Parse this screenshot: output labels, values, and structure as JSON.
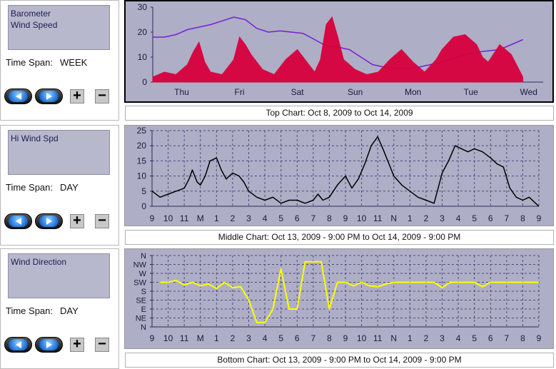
{
  "panels": [
    {
      "series": [
        "Barometer",
        "Wind Speed"
      ],
      "time_span_label": "Time Span:",
      "time_span_value": "WEEK"
    },
    {
      "series": [
        "Hi Wind Spd"
      ],
      "time_span_label": "Time Span:",
      "time_span_value": "DAY"
    },
    {
      "series": [
        "Wind Direction"
      ],
      "time_span_label": "Time Span:",
      "time_span_value": "DAY"
    }
  ],
  "controls": {
    "back": "back",
    "forward": "forward",
    "plus": "+",
    "minus": "−",
    "icons": {
      "back": "left-arrow-icon",
      "forward": "right-arrow-icon",
      "plus": "plus-icon",
      "minus": "minus-icon"
    }
  },
  "captions": {
    "top": "Top Chart:  Oct 8, 2009  to  Oct 14, 2009",
    "middle": "Middle Chart:  Oct 13, 2009 - 9:00 PM  to  Oct 14, 2009 - 9:00 PM",
    "bottom": "Bottom Chart:  Oct 13, 2009 - 9:00 PM  to  Oct 14, 2009 - 9:00 PM"
  },
  "colors": {
    "plot_bg": "#aeaec6",
    "wind_speed": "#d8003c",
    "barometer": "#7a1fd0",
    "hi_wind": "#000000",
    "direction": "#ffff00",
    "grid": "#4b4b80"
  },
  "chart_data": [
    {
      "type": "line",
      "x_ticks": [
        "Thu",
        "Fri",
        "Sat",
        "Sun",
        "Mon",
        "Tue",
        "Wed"
      ],
      "ylim": [
        0,
        30
      ],
      "y_ticks": [
        "0",
        "10",
        "20",
        "30"
      ],
      "grid": false,
      "series": [
        {
          "name": "Barometer",
          "color": "#7a1fd0",
          "x": [
            0,
            0.2,
            0.4,
            0.6,
            0.8,
            1.0,
            1.2,
            1.4,
            1.6,
            1.8,
            2.0,
            2.2,
            2.4,
            2.6,
            2.8,
            3.0,
            3.2,
            3.4,
            3.6,
            3.8,
            4.0,
            4.2,
            4.4,
            4.6,
            4.8,
            5.0,
            5.2,
            5.4,
            5.6,
            5.8,
            6.0,
            6.2,
            6.4
          ],
          "values": [
            18,
            18,
            19,
            21,
            22,
            23,
            24.5,
            26,
            25,
            21.5,
            20,
            20.5,
            20,
            19.5,
            17,
            14.5,
            14,
            13,
            10,
            7,
            6,
            5.5,
            5.5,
            6,
            7,
            8,
            9.5,
            11,
            12,
            12.5,
            13,
            15,
            17
          ]
        },
        {
          "name": "Wind Speed",
          "color": "#d8003c",
          "x": [
            0,
            0.2,
            0.4,
            0.6,
            0.7,
            0.8,
            0.9,
            1.0,
            1.2,
            1.4,
            1.5,
            1.6,
            1.7,
            1.9,
            2.1,
            2.3,
            2.5,
            2.7,
            2.8,
            2.9,
            3.0,
            3.1,
            3.2,
            3.3,
            3.5,
            3.7,
            3.9,
            4.1,
            4.3,
            4.5,
            4.7,
            4.9,
            5.0,
            5.2,
            5.4,
            5.6,
            5.7,
            5.8,
            6.0,
            6.2,
            6.4
          ],
          "values": [
            2,
            4,
            3,
            7,
            12,
            16,
            8,
            4,
            3,
            9,
            18,
            15,
            11,
            5,
            3,
            9,
            13,
            7,
            4,
            9,
            23,
            26,
            18,
            9,
            5,
            3,
            4,
            9,
            13,
            8,
            4,
            9,
            13,
            18,
            19,
            15,
            10,
            8,
            15,
            11,
            2
          ]
        }
      ]
    },
    {
      "type": "line",
      "x_ticks": [
        "9",
        "10",
        "11",
        "M",
        "1",
        "2",
        "3",
        "4",
        "5",
        "6",
        "7",
        "8",
        "9",
        "10",
        "11",
        "N",
        "1",
        "2",
        "3",
        "4",
        "5",
        "6",
        "7",
        "8",
        "9"
      ],
      "ylim": [
        0,
        25
      ],
      "y_ticks": [
        "0",
        "5",
        "10",
        "15",
        "20",
        "25"
      ],
      "grid": true,
      "series": [
        {
          "name": "Hi Wind Spd",
          "color": "#000000",
          "x": [
            0,
            0.5,
            1,
            1.5,
            2,
            2.3,
            2.5,
            2.8,
            3,
            3.3,
            3.6,
            4,
            4.3,
            4.6,
            5,
            5.4,
            5.7,
            6,
            6.5,
            7,
            7.5,
            8,
            8.5,
            9,
            9.5,
            10,
            10.3,
            10.6,
            11,
            11.5,
            12,
            12.4,
            12.8,
            13.2,
            13.6,
            14,
            14.4,
            15,
            15.5,
            16,
            16.5,
            17,
            17.5,
            18,
            18.4,
            18.8,
            19.2,
            19.6,
            20,
            20.5,
            21,
            21.4,
            21.8,
            22.2,
            22.6,
            23,
            23.4,
            23.8,
            24
          ],
          "values": [
            5,
            3,
            4,
            5,
            6,
            9,
            12,
            8,
            7,
            10,
            15,
            16,
            12,
            9,
            11,
            10,
            8,
            5,
            3,
            2,
            3,
            1,
            2,
            2,
            1,
            2,
            4,
            2,
            3,
            7,
            10,
            6,
            9,
            14,
            20,
            23,
            18,
            10,
            7,
            5,
            3,
            2,
            1,
            11,
            15,
            20,
            19,
            18,
            19,
            18,
            16,
            14,
            13,
            6,
            3,
            2,
            3,
            1,
            0
          ]
        }
      ]
    },
    {
      "type": "line",
      "x_ticks": [
        "9",
        "10",
        "11",
        "M",
        "1",
        "2",
        "3",
        "4",
        "5",
        "6",
        "7",
        "8",
        "9",
        "10",
        "11",
        "N",
        "1",
        "2",
        "3",
        "4",
        "5",
        "6",
        "7",
        "8",
        "9"
      ],
      "ylim": [
        0,
        8
      ],
      "y_ticks": [
        "N",
        "NE",
        "E",
        "SE",
        "S",
        "SW",
        "W",
        "NW",
        "N"
      ],
      "grid": true,
      "series": [
        {
          "name": "Wind Direction",
          "color": "#ffff00",
          "x": [
            0.5,
            1,
            1.5,
            2,
            2.5,
            3,
            3.5,
            4,
            4.5,
            5,
            5.5,
            6,
            6.5,
            7,
            7.5,
            8,
            8.5,
            9,
            9.5,
            10,
            10.5,
            11,
            11.5,
            12,
            12.5,
            13,
            13.5,
            14,
            14.5,
            15,
            15.5,
            16,
            16.5,
            17,
            17.5,
            18,
            18.5,
            19,
            19.5,
            20,
            20.5,
            21,
            21.5,
            22,
            22.5,
            23,
            23.5,
            24
          ],
          "values": [
            5,
            5,
            5.2,
            4.7,
            5,
            4.6,
            4.8,
            4.3,
            5,
            4.4,
            4.5,
            3,
            0.5,
            0.5,
            2,
            6.5,
            2,
            2,
            7.3,
            7.3,
            7.3,
            2,
            5,
            5,
            4.6,
            5,
            4.6,
            4.5,
            4.8,
            5,
            5,
            5,
            5,
            5,
            5,
            4.4,
            5,
            5,
            5,
            5,
            4.5,
            5,
            5,
            5,
            5,
            5,
            5,
            5
          ]
        }
      ]
    }
  ]
}
